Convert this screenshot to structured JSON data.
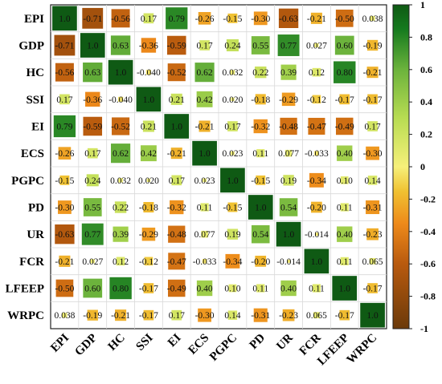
{
  "chart_data": {
    "type": "heatmap",
    "title": "",
    "variables": [
      "EPI",
      "GDP",
      "HC",
      "SSI",
      "EI",
      "ECS",
      "PGPC",
      "PD",
      "UR",
      "FCR",
      "LFEEP",
      "WRPC"
    ],
    "matrix": [
      [
        1.0,
        -0.71,
        -0.56,
        0.17,
        0.79,
        -0.26,
        -0.15,
        -0.3,
        -0.63,
        -0.21,
        -0.5,
        0.038
      ],
      [
        -0.71,
        1.0,
        0.63,
        -0.36,
        -0.59,
        0.17,
        0.24,
        0.55,
        0.77,
        0.027,
        0.6,
        -0.19
      ],
      [
        -0.56,
        0.63,
        1.0,
        -0.04,
        -0.52,
        0.62,
        0.032,
        0.22,
        0.39,
        0.12,
        0.8,
        -0.21
      ],
      [
        0.17,
        -0.36,
        -0.04,
        1.0,
        0.21,
        0.42,
        0.02,
        -0.18,
        -0.29,
        -0.12,
        -0.17,
        -0.17
      ],
      [
        0.79,
        -0.59,
        -0.52,
        0.21,
        1.0,
        -0.21,
        0.17,
        -0.32,
        -0.48,
        -0.47,
        -0.49,
        0.17
      ],
      [
        -0.26,
        0.17,
        0.62,
        0.42,
        -0.21,
        1.0,
        0.023,
        0.11,
        0.077,
        -0.033,
        0.4,
        -0.3
      ],
      [
        -0.15,
        0.24,
        0.032,
        0.02,
        0.17,
        0.023,
        1.0,
        -0.15,
        0.19,
        -0.34,
        0.1,
        0.14
      ],
      [
        -0.3,
        0.55,
        0.22,
        -0.18,
        -0.32,
        0.11,
        -0.15,
        1.0,
        0.54,
        -0.2,
        0.11,
        -0.31
      ],
      [
        -0.63,
        0.77,
        0.39,
        -0.29,
        -0.48,
        0.077,
        0.19,
        0.54,
        1.0,
        -0.014,
        0.4,
        -0.23
      ],
      [
        -0.21,
        0.027,
        0.12,
        -0.12,
        -0.47,
        -0.033,
        -0.34,
        -0.2,
        -0.014,
        1.0,
        0.11,
        0.065
      ],
      [
        -0.5,
        0.6,
        0.8,
        -0.17,
        -0.49,
        0.4,
        0.1,
        0.11,
        0.4,
        0.11,
        1.0,
        -0.17
      ],
      [
        0.038,
        -0.19,
        -0.21,
        -0.17,
        0.17,
        -0.3,
        0.14,
        -0.31,
        -0.23,
        0.065,
        -0.17,
        1.0
      ]
    ],
    "labels": [
      [
        "1.0",
        "-0.71",
        "-0.56",
        "0.17",
        "0.79",
        "-0.26",
        "-0.15",
        "-0.30",
        "-0.63",
        "-0.21",
        "-0.50",
        "0.038"
      ],
      [
        "-0.71",
        "1.0",
        "0.63",
        "-0.36",
        "-0.59",
        "0.17",
        "0.24",
        "0.55",
        "0.77",
        "0.027",
        "0.60",
        "-0.19"
      ],
      [
        "-0.56",
        "0.63",
        "1.0",
        "-0.040",
        "-0.52",
        "0.62",
        "0.032",
        "0.22",
        "0.39",
        "0.12",
        "0.80",
        "-0.21"
      ],
      [
        "0.17",
        "-0.36",
        "-0.040",
        "1.0",
        "0.21",
        "0.42",
        "0.020",
        "-0.18",
        "-0.29",
        "-0.12",
        "-0.17",
        "-0.17"
      ],
      [
        "0.79",
        "-0.59",
        "-0.52",
        "0.21",
        "1.0",
        "-0.21",
        "0.17",
        "-0.32",
        "-0.48",
        "-0.47",
        "-0.49",
        "0.17"
      ],
      [
        "-0.26",
        "0.17",
        "0.62",
        "0.42",
        "-0.21",
        "1.0",
        "0.023",
        "0.11",
        "0.077",
        "-0.033",
        "0.40",
        "-0.30"
      ],
      [
        "-0.15",
        "0.24",
        "0.032",
        "0.020",
        "0.17",
        "0.023",
        "1.0",
        "-0.15",
        "0.19",
        "-0.34",
        "0.10",
        "0.14"
      ],
      [
        "-0.30",
        "0.55",
        "0.22",
        "-0.18",
        "-0.32",
        "0.11",
        "-0.15",
        "1.0",
        "0.54",
        "-0.20",
        "0.11",
        "-0.31"
      ],
      [
        "-0.63",
        "0.77",
        "0.39",
        "-0.29",
        "-0.48",
        "0.077",
        "0.19",
        "0.54",
        "1.0",
        "-0.014",
        "0.40",
        "-0.23"
      ],
      [
        "-0.21",
        "0.027",
        "0.12",
        "-0.12",
        "-0.47",
        "-0.033",
        "-0.34",
        "-0.20",
        "-0.014",
        "1.0",
        "0.11",
        "0.065"
      ],
      [
        "-0.50",
        "0.60",
        "0.80",
        "-0.17",
        "-0.49",
        "0.40",
        "0.10",
        "0.11",
        "0.40",
        "0.11",
        "1.0",
        "-0.17"
      ],
      [
        "0.038",
        "-0.19",
        "-0.21",
        "-0.17",
        "0.17",
        "-0.30",
        "0.14",
        "-0.31",
        "-0.23",
        "0.065",
        "-0.17",
        "1.0"
      ]
    ],
    "encoding": "square size and color proportional to correlation",
    "colorbar": {
      "range": [
        -1,
        1
      ],
      "ticks": [
        "1",
        "0.8",
        "0.6",
        "0.4",
        "0.2",
        "0",
        "-0.2",
        "-0.4",
        "-0.6",
        "-0.8",
        "-1"
      ],
      "colors": [
        "#6b3a0a",
        "#b85a0e",
        "#ee8a1a",
        "#f0c232",
        "#f6f07a",
        "#b8dc52",
        "#6cb33c",
        "#157a1e",
        "#0f5a14"
      ],
      "color_positions": [
        -1.0,
        -0.6,
        -0.35,
        -0.15,
        0.0,
        0.3,
        0.6,
        0.85,
        1.0
      ],
      "placement": "right"
    },
    "grid": true
  }
}
